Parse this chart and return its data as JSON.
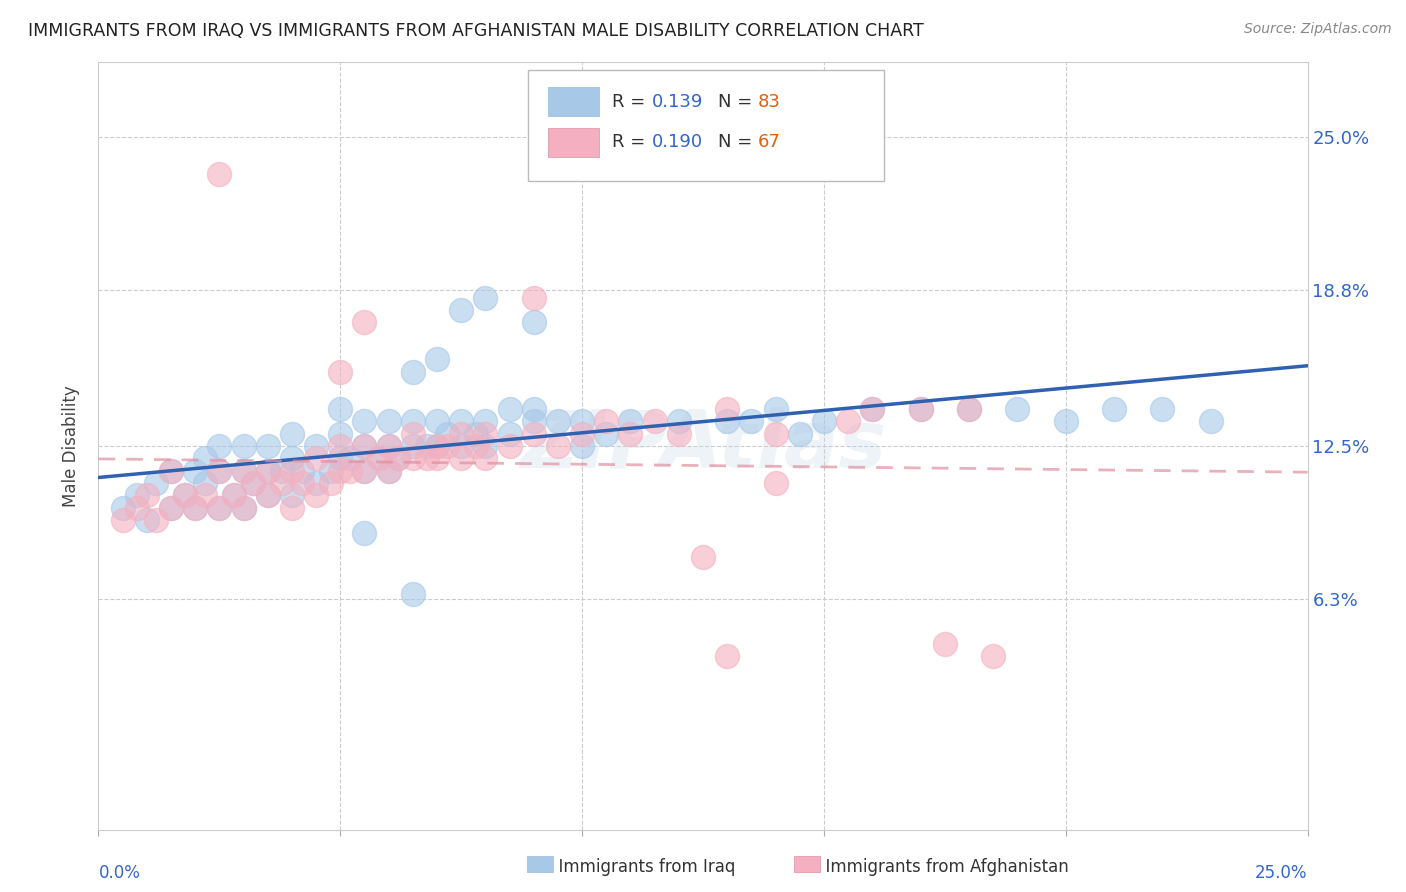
{
  "title": "IMMIGRANTS FROM IRAQ VS IMMIGRANTS FROM AFGHANISTAN MALE DISABILITY CORRELATION CHART",
  "source": "Source: ZipAtlas.com",
  "ylabel": "Male Disability",
  "ytick_labels": [
    "25.0%",
    "18.8%",
    "12.5%",
    "6.3%"
  ],
  "ytick_values": [
    0.25,
    0.188,
    0.125,
    0.063
  ],
  "xlim": [
    0.0,
    0.25
  ],
  "ylim": [
    -0.03,
    0.28
  ],
  "iraq_color": "#a8c8e8",
  "afghanistan_color": "#f4b0c0",
  "iraq_line_color": "#3060b0",
  "afghanistan_line_color": "#e090a0",
  "iraq_R": 0.139,
  "iraq_N": 83,
  "afghanistan_R": 0.19,
  "afghanistan_N": 67,
  "legend_label_iraq": "Immigrants from Iraq",
  "legend_label_afghanistan": "Immigrants from Afghanistan",
  "watermark": "ZIPAtlas",
  "iraq_scatter_x": [
    0.005,
    0.008,
    0.01,
    0.012,
    0.015,
    0.015,
    0.018,
    0.02,
    0.02,
    0.022,
    0.022,
    0.025,
    0.025,
    0.025,
    0.028,
    0.03,
    0.03,
    0.03,
    0.032,
    0.035,
    0.035,
    0.035,
    0.038,
    0.04,
    0.04,
    0.04,
    0.042,
    0.045,
    0.045,
    0.048,
    0.05,
    0.05,
    0.05,
    0.052,
    0.055,
    0.055,
    0.055,
    0.058,
    0.06,
    0.06,
    0.06,
    0.062,
    0.065,
    0.065,
    0.065,
    0.068,
    0.07,
    0.07,
    0.072,
    0.075,
    0.075,
    0.078,
    0.08,
    0.08,
    0.085,
    0.085,
    0.09,
    0.09,
    0.095,
    0.1,
    0.1,
    0.105,
    0.11,
    0.12,
    0.13,
    0.135,
    0.14,
    0.145,
    0.15,
    0.16,
    0.17,
    0.18,
    0.19,
    0.2,
    0.21,
    0.22,
    0.23,
    0.08,
    0.065,
    0.055,
    0.07,
    0.09,
    0.075
  ],
  "iraq_scatter_y": [
    0.1,
    0.105,
    0.095,
    0.11,
    0.1,
    0.115,
    0.105,
    0.1,
    0.115,
    0.11,
    0.12,
    0.1,
    0.115,
    0.125,
    0.105,
    0.1,
    0.115,
    0.125,
    0.11,
    0.105,
    0.115,
    0.125,
    0.115,
    0.105,
    0.12,
    0.13,
    0.115,
    0.11,
    0.125,
    0.115,
    0.12,
    0.13,
    0.14,
    0.12,
    0.115,
    0.125,
    0.135,
    0.12,
    0.115,
    0.125,
    0.135,
    0.12,
    0.125,
    0.135,
    0.155,
    0.125,
    0.125,
    0.135,
    0.13,
    0.125,
    0.135,
    0.13,
    0.125,
    0.135,
    0.13,
    0.14,
    0.135,
    0.14,
    0.135,
    0.125,
    0.135,
    0.13,
    0.135,
    0.135,
    0.135,
    0.135,
    0.14,
    0.13,
    0.135,
    0.14,
    0.14,
    0.14,
    0.14,
    0.135,
    0.14,
    0.14,
    0.135,
    0.185,
    0.065,
    0.09,
    0.16,
    0.175,
    0.18
  ],
  "afghan_scatter_x": [
    0.005,
    0.008,
    0.01,
    0.012,
    0.015,
    0.015,
    0.018,
    0.02,
    0.022,
    0.025,
    0.025,
    0.028,
    0.03,
    0.03,
    0.032,
    0.035,
    0.035,
    0.038,
    0.04,
    0.04,
    0.042,
    0.045,
    0.045,
    0.048,
    0.05,
    0.05,
    0.052,
    0.055,
    0.055,
    0.058,
    0.06,
    0.06,
    0.062,
    0.065,
    0.065,
    0.068,
    0.07,
    0.07,
    0.072,
    0.075,
    0.075,
    0.078,
    0.08,
    0.08,
    0.085,
    0.09,
    0.095,
    0.1,
    0.105,
    0.11,
    0.115,
    0.12,
    0.13,
    0.14,
    0.155,
    0.16,
    0.17,
    0.18,
    0.025,
    0.05,
    0.055,
    0.09,
    0.125,
    0.14,
    0.175,
    0.185,
    0.13
  ],
  "afghan_scatter_y": [
    0.095,
    0.1,
    0.105,
    0.095,
    0.1,
    0.115,
    0.105,
    0.1,
    0.105,
    0.1,
    0.115,
    0.105,
    0.1,
    0.115,
    0.11,
    0.105,
    0.115,
    0.11,
    0.1,
    0.115,
    0.11,
    0.105,
    0.12,
    0.11,
    0.115,
    0.125,
    0.115,
    0.115,
    0.125,
    0.12,
    0.115,
    0.125,
    0.12,
    0.12,
    0.13,
    0.12,
    0.12,
    0.125,
    0.125,
    0.12,
    0.13,
    0.125,
    0.12,
    0.13,
    0.125,
    0.13,
    0.125,
    0.13,
    0.135,
    0.13,
    0.135,
    0.13,
    0.14,
    0.13,
    0.135,
    0.14,
    0.14,
    0.14,
    0.235,
    0.155,
    0.175,
    0.185,
    0.08,
    0.11,
    0.045,
    0.04,
    0.04
  ]
}
